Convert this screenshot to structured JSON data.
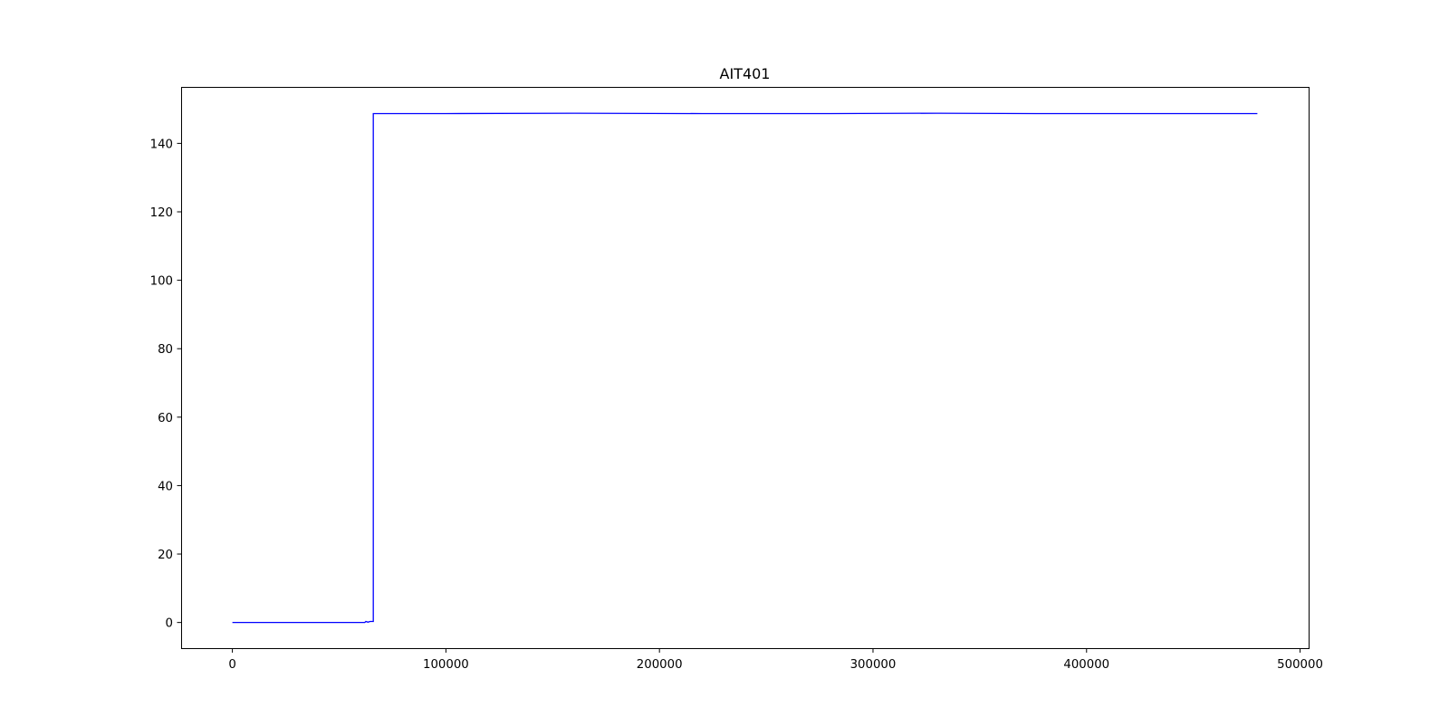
{
  "chart_data": {
    "type": "line",
    "title": "AIT401",
    "xlabel": "",
    "ylabel": "",
    "xlim": [
      -24000,
      504000
    ],
    "ylim": [
      -7.5,
      156.5
    ],
    "x_ticks": [
      0,
      100000,
      200000,
      300000,
      400000,
      500000
    ],
    "x_tick_labels": [
      "0",
      "100000",
      "200000",
      "300000",
      "400000",
      "500000"
    ],
    "y_ticks": [
      0,
      20,
      40,
      60,
      80,
      100,
      120,
      140
    ],
    "y_tick_labels": [
      "0",
      "20",
      "40",
      "60",
      "80",
      "100",
      "120",
      "140"
    ],
    "grid": false,
    "legend": "none",
    "series": [
      {
        "color": "#0000ff",
        "x": [
          0,
          62000,
          62500,
          63500,
          64500,
          65500,
          66000,
          66000,
          100000,
          160000,
          220000,
          280000,
          330000,
          380000,
          430000,
          480000
        ],
        "values": [
          0,
          0,
          0.3,
          0.1,
          0.3,
          0.3,
          0.3,
          148.7,
          148.7,
          148.8,
          148.7,
          148.7,
          148.8,
          148.7,
          148.7,
          148.7
        ]
      }
    ]
  }
}
